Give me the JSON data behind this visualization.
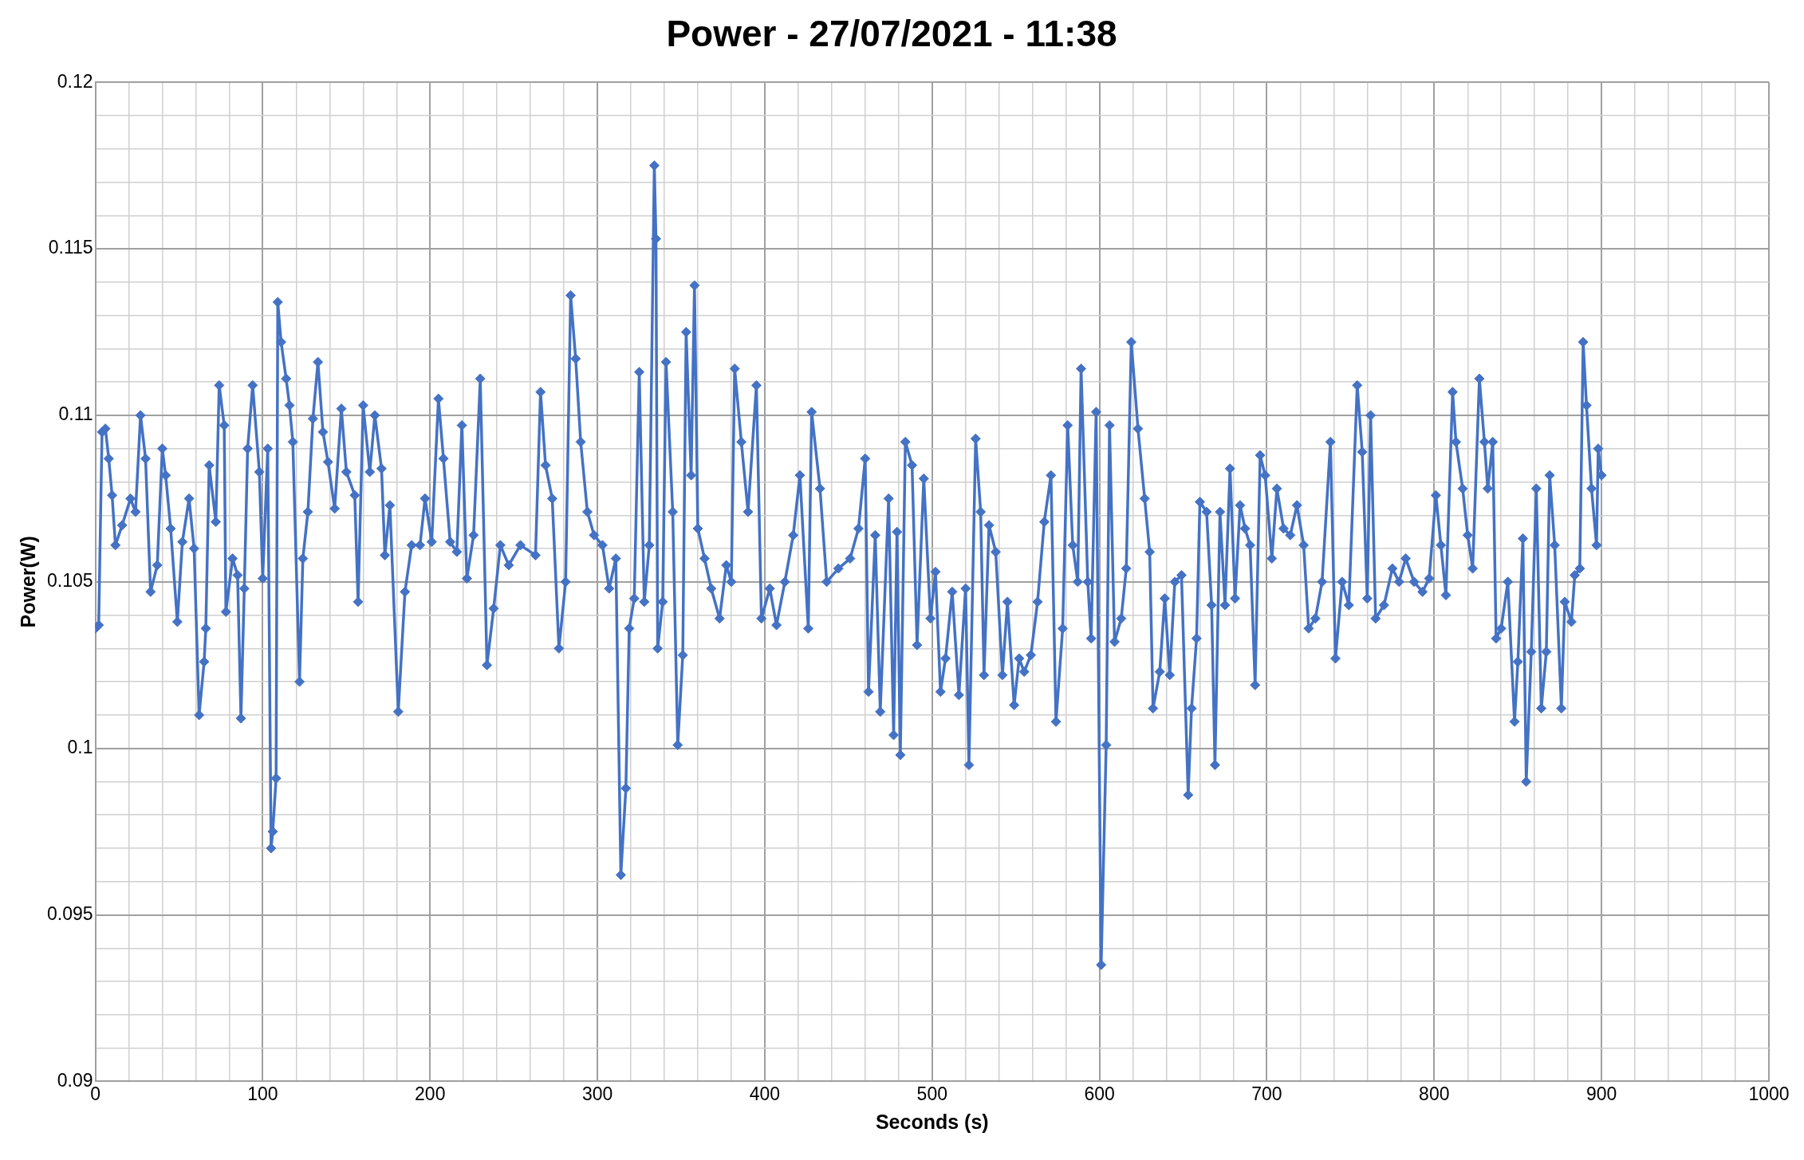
{
  "chart_data": {
    "type": "line",
    "title": "Power - 27/07/2021 - 11:38",
    "xlabel": "Seconds (s)",
    "ylabel": "Power(W)",
    "marker": "diamond",
    "grid": true,
    "legend": false,
    "xlim": [
      0,
      1000
    ],
    "ylim": [
      0.09,
      0.12
    ],
    "xticks": [
      0,
      {
        "value": 20,
        "label": null
      },
      {
        "value": 40,
        "label": null
      },
      {
        "value": 60,
        "label": null
      },
      {
        "value": 80,
        "label": null
      },
      100,
      {
        "value": 120,
        "label": null
      },
      {
        "value": 140,
        "label": null
      },
      {
        "value": 160,
        "label": null
      },
      {
        "value": 180,
        "label": null
      },
      200,
      {
        "value": 220,
        "label": null
      },
      {
        "value": 240,
        "label": null
      },
      {
        "value": 260,
        "label": null
      },
      {
        "value": 280,
        "label": null
      },
      300,
      {
        "value": 320,
        "label": null
      },
      {
        "value": 340,
        "label": null
      },
      {
        "value": 360,
        "label": null
      },
      {
        "value": 380,
        "label": null
      },
      400,
      {
        "value": 420,
        "label": null
      },
      {
        "value": 440,
        "label": null
      },
      {
        "value": 460,
        "label": null
      },
      {
        "value": 480,
        "label": null
      },
      500,
      {
        "value": 520,
        "label": null
      },
      {
        "value": 540,
        "label": null
      },
      {
        "value": 560,
        "label": null
      },
      {
        "value": 580,
        "label": null
      },
      600,
      {
        "value": 620,
        "label": null
      },
      {
        "value": 640,
        "label": null
      },
      {
        "value": 660,
        "label": null
      },
      {
        "value": 680,
        "label": null
      },
      700,
      {
        "value": 720,
        "label": null
      },
      {
        "value": 740,
        "label": null
      },
      {
        "value": 760,
        "label": null
      },
      {
        "value": 780,
        "label": null
      },
      800,
      {
        "value": 820,
        "label": null
      },
      {
        "value": 840,
        "label": null
      },
      {
        "value": 860,
        "label": null
      },
      {
        "value": 880,
        "label": null
      },
      900,
      {
        "value": 920,
        "label": null
      },
      {
        "value": 940,
        "label": null
      },
      {
        "value": 960,
        "label": null
      },
      {
        "value": 980,
        "label": null
      },
      1000
    ],
    "yticks": [
      0.09,
      {
        "value": 0.091,
        "label": null
      },
      {
        "value": 0.092,
        "label": null
      },
      {
        "value": 0.093,
        "label": null
      },
      {
        "value": 0.094,
        "label": null
      },
      0.095,
      {
        "value": 0.096,
        "label": null
      },
      {
        "value": 0.097,
        "label": null
      },
      {
        "value": 0.098,
        "label": null
      },
      {
        "value": 0.099,
        "label": null
      },
      0.1,
      {
        "value": 0.101,
        "label": null
      },
      {
        "value": 0.102,
        "label": null
      },
      {
        "value": 0.103,
        "label": null
      },
      {
        "value": 0.104,
        "label": null
      },
      0.105,
      {
        "value": 0.106,
        "label": null
      },
      {
        "value": 0.107,
        "label": null
      },
      {
        "value": 0.108,
        "label": null
      },
      {
        "value": 0.109,
        "label": null
      },
      0.11,
      {
        "value": 0.111,
        "label": null
      },
      {
        "value": 0.112,
        "label": null
      },
      {
        "value": 0.113,
        "label": null
      },
      {
        "value": 0.114,
        "label": null
      },
      0.115,
      {
        "value": 0.116,
        "label": null
      },
      {
        "value": 0.117,
        "label": null
      },
      {
        "value": 0.118,
        "label": null
      },
      {
        "value": 0.119,
        "label": null
      },
      0.12
    ],
    "series": [
      {
        "color": "#4472c4",
        "x": [
          0,
          2,
          4,
          6,
          8,
          10,
          12,
          16,
          21,
          24,
          27,
          30,
          33,
          37,
          40,
          42,
          45,
          49,
          52,
          56,
          59,
          62,
          65,
          66,
          68,
          72,
          74,
          77,
          78,
          82,
          85,
          87,
          89,
          91,
          94,
          98,
          100,
          103,
          105,
          106,
          108,
          109,
          111,
          114,
          116,
          118,
          122,
          124,
          127,
          130,
          133,
          136,
          139,
          143,
          147,
          150,
          155,
          157,
          160,
          164,
          167,
          171,
          173,
          176,
          181,
          185,
          189,
          194,
          197,
          201,
          205,
          208,
          212,
          216,
          219,
          222,
          226,
          230,
          234,
          238,
          242,
          247,
          254,
          263,
          266,
          269,
          273,
          277,
          281,
          284,
          287,
          290,
          294,
          298,
          303,
          307,
          311,
          314,
          317,
          319,
          322,
          325,
          328,
          331,
          334,
          335,
          336,
          339,
          341,
          345,
          348,
          351,
          353,
          356,
          358,
          360,
          364,
          368,
          373,
          377,
          380,
          382,
          386,
          390,
          395,
          398,
          403,
          407,
          412,
          417,
          421,
          426,
          428,
          433,
          437,
          444,
          451,
          456,
          460,
          462,
          466,
          469,
          474,
          477,
          479,
          481,
          484,
          488,
          491,
          495,
          499,
          502,
          505,
          508,
          512,
          516,
          520,
          522,
          526,
          529,
          531,
          534,
          538,
          542,
          545,
          549,
          552,
          555,
          559,
          563,
          567,
          571,
          574,
          578,
          581,
          584,
          587,
          589,
          593,
          595,
          598,
          601,
          604,
          606,
          609,
          613,
          616,
          619,
          623,
          627,
          630,
          632,
          636,
          639,
          642,
          645,
          649,
          653,
          655,
          658,
          660,
          664,
          667,
          669,
          672,
          675,
          678,
          681,
          684,
          687,
          690,
          693,
          696,
          699,
          703,
          706,
          710,
          714,
          718,
          722,
          725,
          729,
          733,
          738,
          741,
          745,
          749,
          754,
          757,
          760,
          762,
          765,
          770,
          775,
          779,
          783,
          788,
          793,
          797,
          801,
          804,
          807,
          811,
          813,
          817,
          820,
          823,
          827,
          830,
          832,
          835,
          837,
          840,
          844,
          848,
          850,
          853,
          855,
          858,
          861,
          864,
          867,
          869,
          872,
          876,
          878,
          882,
          884,
          887,
          889,
          891,
          894,
          897,
          898,
          900
        ],
        "values": [
          0.1036,
          0.1037,
          0.1095,
          0.1096,
          0.1087,
          0.1076,
          0.1061,
          0.1067,
          0.1075,
          0.1071,
          0.11,
          0.1087,
          0.1047,
          0.1055,
          0.109,
          0.1082,
          0.1066,
          0.1038,
          0.1062,
          0.1075,
          0.106,
          0.101,
          0.1026,
          0.1036,
          0.1085,
          0.1068,
          0.1109,
          0.1097,
          0.1041,
          0.1057,
          0.1052,
          0.1009,
          0.1048,
          0.109,
          0.1109,
          0.1083,
          0.1051,
          0.109,
          0.097,
          0.0975,
          0.0991,
          0.1134,
          0.1122,
          0.1111,
          0.1103,
          0.1092,
          0.102,
          0.1057,
          0.1071,
          0.1099,
          0.1116,
          0.1095,
          0.1086,
          0.1072,
          0.1102,
          0.1083,
          0.1076,
          0.1044,
          0.1103,
          0.1083,
          0.11,
          0.1084,
          0.1058,
          0.1073,
          0.1011,
          0.1047,
          0.1061,
          0.1061,
          0.1075,
          0.1062,
          0.1105,
          0.1087,
          0.1062,
          0.1059,
          0.1097,
          0.1051,
          0.1064,
          0.1111,
          0.1025,
          0.1042,
          0.1061,
          0.1055,
          0.1061,
          0.1058,
          0.1107,
          0.1085,
          0.1075,
          0.103,
          0.105,
          0.1136,
          0.1117,
          0.1092,
          0.1071,
          0.1064,
          0.1061,
          0.1048,
          0.1057,
          0.0962,
          0.0988,
          0.1036,
          0.1045,
          0.1113,
          0.1044,
          0.1061,
          0.1175,
          0.1153,
          0.103,
          0.1044,
          0.1116,
          0.1071,
          0.1001,
          0.1028,
          0.1125,
          0.1082,
          0.1139,
          0.1066,
          0.1057,
          0.1048,
          0.1039,
          0.1055,
          0.105,
          0.1114,
          0.1092,
          0.1071,
          0.1109,
          0.1039,
          0.1048,
          0.1037,
          0.105,
          0.1064,
          0.1082,
          0.1036,
          0.1101,
          0.1078,
          0.105,
          0.1054,
          0.1057,
          0.1066,
          0.1087,
          0.1017,
          0.1064,
          0.1011,
          0.1075,
          0.1004,
          0.1065,
          0.0998,
          0.1092,
          0.1085,
          0.1031,
          0.1081,
          0.1039,
          0.1053,
          0.1017,
          0.1027,
          0.1047,
          0.1016,
          0.1048,
          0.0995,
          0.1093,
          0.1071,
          0.1022,
          0.1067,
          0.1059,
          0.1022,
          0.1044,
          0.1013,
          0.1027,
          0.1023,
          0.1028,
          0.1044,
          0.1068,
          0.1082,
          0.1008,
          0.1036,
          0.1097,
          0.1061,
          0.105,
          0.1114,
          0.105,
          0.1033,
          0.1101,
          0.0935,
          0.1001,
          0.1097,
          0.1032,
          0.1039,
          0.1054,
          0.1122,
          0.1096,
          0.1075,
          0.1059,
          0.1012,
          0.1023,
          0.1045,
          0.1022,
          0.105,
          0.1052,
          0.0986,
          0.1012,
          0.1033,
          0.1074,
          0.1071,
          0.1043,
          0.0995,
          0.1071,
          0.1043,
          0.1084,
          0.1045,
          0.1073,
          0.1066,
          0.1061,
          0.1019,
          0.1088,
          0.1082,
          0.1057,
          0.1078,
          0.1066,
          0.1064,
          0.1073,
          0.1061,
          0.1036,
          0.1039,
          0.105,
          0.1092,
          0.1027,
          0.105,
          0.1043,
          0.1109,
          0.1089,
          0.1045,
          0.11,
          0.1039,
          0.1043,
          0.1054,
          0.105,
          0.1057,
          0.105,
          0.1047,
          0.1051,
          0.1076,
          0.1061,
          0.1046,
          0.1107,
          0.1092,
          0.1078,
          0.1064,
          0.1054,
          0.1111,
          0.1092,
          0.1078,
          0.1092,
          0.1033,
          0.1036,
          0.105,
          0.1008,
          0.1026,
          0.1063,
          0.099,
          0.1029,
          0.1078,
          0.1012,
          0.1029,
          0.1082,
          0.1061,
          0.1012,
          0.1044,
          0.1038,
          0.1052,
          0.1054,
          0.1122,
          0.1103,
          0.1078,
          0.1061,
          0.109,
          0.1082
        ]
      }
    ]
  }
}
